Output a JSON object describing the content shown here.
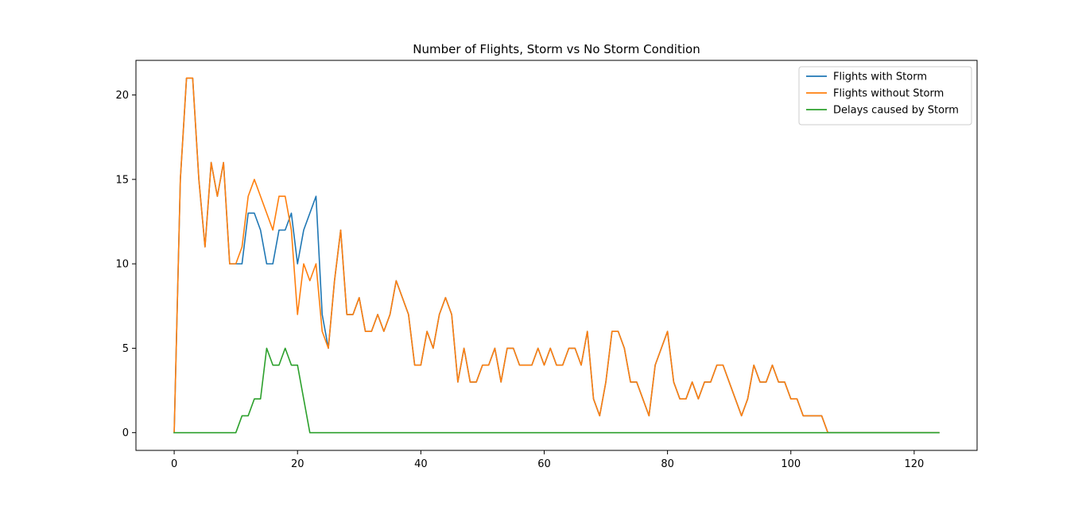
{
  "chart_data": {
    "type": "line",
    "title": "Number of Flights, Storm vs No Storm Condition",
    "xlabel": "",
    "ylabel": "",
    "xlim": [
      -6.2,
      130.2
    ],
    "ylim": [
      -1.05,
      22.05
    ],
    "x_ticks": [
      0,
      20,
      40,
      60,
      80,
      100,
      120
    ],
    "y_ticks": [
      0,
      5,
      10,
      15,
      20
    ],
    "grid": false,
    "legend_position": "top-right",
    "x_start": 0,
    "series": [
      {
        "name": "Flights with Storm",
        "color": "#1f77b4",
        "values": [
          0,
          15,
          21,
          21,
          15,
          11,
          16,
          14,
          16,
          10,
          10,
          10,
          13,
          13,
          12,
          10,
          10,
          12,
          12,
          13,
          10,
          12,
          13,
          14,
          7,
          5,
          9,
          12,
          7,
          7,
          8,
          6,
          6,
          7,
          6,
          7,
          9,
          8,
          7,
          4,
          4,
          6,
          5,
          7,
          8,
          7,
          3,
          5,
          3,
          3,
          4,
          4,
          5,
          3,
          5,
          5,
          4,
          4,
          4,
          5,
          4,
          5,
          4,
          4,
          5,
          5,
          4,
          6,
          2,
          1,
          3,
          6,
          6,
          5,
          3,
          3,
          2,
          1,
          4,
          5,
          6,
          3,
          2,
          2,
          3,
          2,
          3,
          3,
          4,
          4,
          3,
          2,
          1,
          2,
          4,
          3,
          3,
          4,
          3,
          3,
          2,
          2,
          1,
          1,
          1,
          1,
          0,
          0,
          0,
          0,
          0,
          0,
          0,
          0,
          0,
          0,
          0,
          0,
          0,
          0,
          0,
          0,
          0,
          0,
          0
        ]
      },
      {
        "name": "Flights without Storm",
        "color": "#ff7f0e",
        "values": [
          0,
          15,
          21,
          21,
          15,
          11,
          16,
          14,
          16,
          10,
          10,
          11,
          14,
          15,
          14,
          13,
          12,
          14,
          14,
          12,
          7,
          10,
          9,
          10,
          6,
          5,
          9,
          12,
          7,
          7,
          8,
          6,
          6,
          7,
          6,
          7,
          9,
          8,
          7,
          4,
          4,
          6,
          5,
          7,
          8,
          7,
          3,
          5,
          3,
          3,
          4,
          4,
          5,
          3,
          5,
          5,
          4,
          4,
          4,
          5,
          4,
          5,
          4,
          4,
          5,
          5,
          4,
          6,
          2,
          1,
          3,
          6,
          6,
          5,
          3,
          3,
          2,
          1,
          4,
          5,
          6,
          3,
          2,
          2,
          3,
          2,
          3,
          3,
          4,
          4,
          3,
          2,
          1,
          2,
          4,
          3,
          3,
          4,
          3,
          3,
          2,
          2,
          1,
          1,
          1,
          1,
          0,
          0,
          0,
          0,
          0,
          0,
          0,
          0,
          0,
          0,
          0,
          0,
          0,
          0,
          0,
          0,
          0,
          0,
          0
        ]
      },
      {
        "name": "Delays caused by Storm",
        "color": "#2ca02c",
        "values": [
          0,
          0,
          0,
          0,
          0,
          0,
          0,
          0,
          0,
          0,
          0,
          1,
          1,
          2,
          2,
          5,
          4,
          4,
          5,
          4,
          4,
          2,
          0,
          0,
          0,
          0,
          0,
          0,
          0,
          0,
          0,
          0,
          0,
          0,
          0,
          0,
          0,
          0,
          0,
          0,
          0,
          0,
          0,
          0,
          0,
          0,
          0,
          0,
          0,
          0,
          0,
          0,
          0,
          0,
          0,
          0,
          0,
          0,
          0,
          0,
          0,
          0,
          0,
          0,
          0,
          0,
          0,
          0,
          0,
          0,
          0,
          0,
          0,
          0,
          0,
          0,
          0,
          0,
          0,
          0,
          0,
          0,
          0,
          0,
          0,
          0,
          0,
          0,
          0,
          0,
          0,
          0,
          0,
          0,
          0,
          0,
          0,
          0,
          0,
          0,
          0,
          0,
          0,
          0,
          0,
          0,
          0,
          0,
          0,
          0,
          0,
          0,
          0,
          0,
          0,
          0,
          0,
          0,
          0,
          0,
          0,
          0,
          0,
          0,
          0
        ]
      }
    ]
  }
}
